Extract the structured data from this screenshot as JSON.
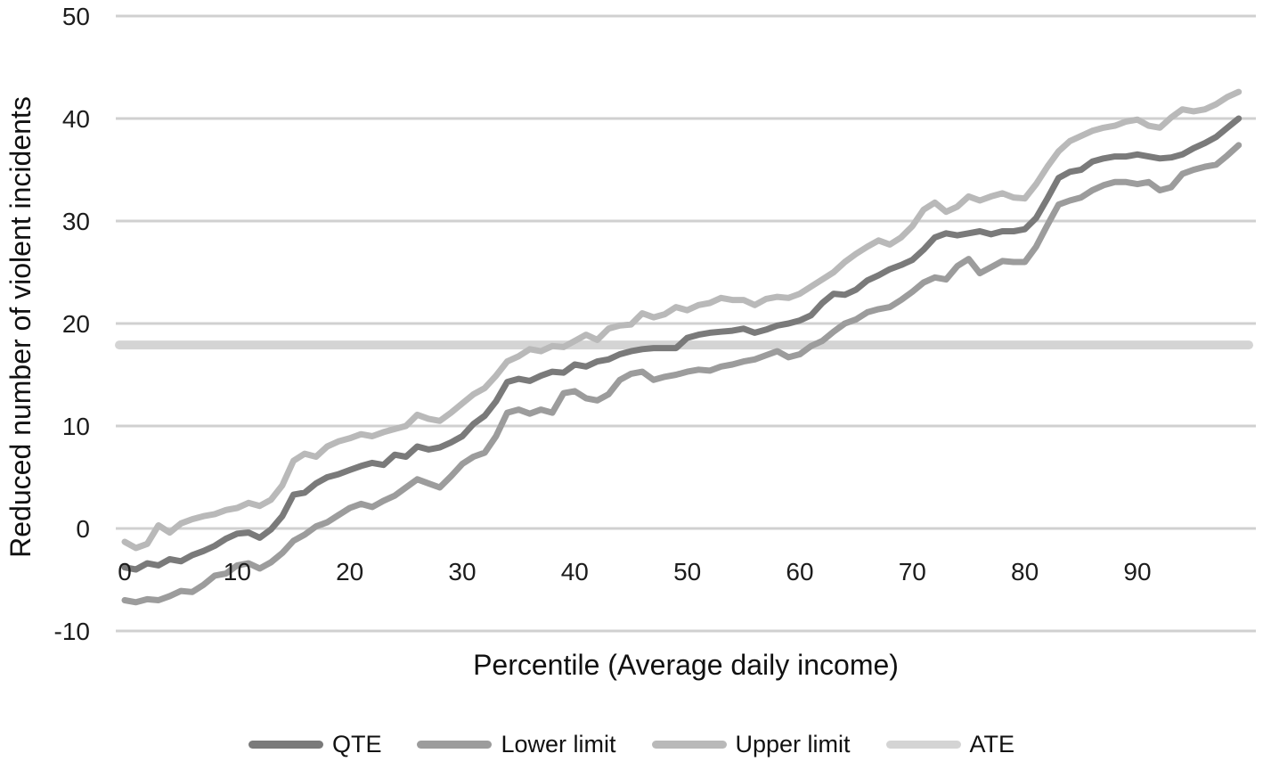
{
  "chart_data": {
    "type": "line",
    "title": "",
    "xlabel": "Percentile (Average daily income)",
    "ylabel": "Reduced number of violent incidents",
    "xlim": [
      0,
      99
    ],
    "ylim": [
      -10,
      50
    ],
    "xticks": [
      0,
      10,
      20,
      30,
      40,
      50,
      60,
      70,
      80,
      90
    ],
    "yticks": [
      -10,
      0,
      10,
      20,
      30,
      40,
      50
    ],
    "grid": "horizontal",
    "legend_position": "bottom",
    "colors": {
      "background": "#ffffff",
      "gridline": "#d0d0d0",
      "text": "#1c1c1c"
    },
    "series": [
      {
        "name": "QTE",
        "color": "#7a7a7a",
        "values": [
          -3.8,
          -4.0,
          -3.4,
          -3.6,
          -3.0,
          -3.2,
          -2.6,
          -2.2,
          -1.7,
          -1.0,
          -0.5,
          -0.4,
          -0.9,
          -0.1,
          1.2,
          3.3,
          3.5,
          4.4,
          5.0,
          5.3,
          5.7,
          6.1,
          6.4,
          6.2,
          7.2,
          7.0,
          8.0,
          7.7,
          7.9,
          8.4,
          9.0,
          10.2,
          11.0,
          12.4,
          14.3,
          14.6,
          14.4,
          14.9,
          15.3,
          15.2,
          16.0,
          15.8,
          16.3,
          16.5,
          17.0,
          17.3,
          17.5,
          17.6,
          17.6,
          17.6,
          18.6,
          18.9,
          19.1,
          19.2,
          19.3,
          19.5,
          19.1,
          19.4,
          19.8,
          20.0,
          20.3,
          20.8,
          22.0,
          22.9,
          22.8,
          23.3,
          24.2,
          24.7,
          25.3,
          25.7,
          26.2,
          27.2,
          28.4,
          28.8,
          28.6,
          28.8,
          29.0,
          28.7,
          29.0,
          29.0,
          29.2,
          30.3,
          32.2,
          34.2,
          34.8,
          35.0,
          35.8,
          36.1,
          36.3,
          36.3,
          36.5,
          36.3,
          36.1,
          36.2,
          36.5,
          37.1,
          37.6,
          38.2,
          39.1,
          40.0
        ]
      },
      {
        "name": "Lower limit",
        "color": "#9c9c9c",
        "values": [
          -7.0,
          -7.2,
          -6.9,
          -7.0,
          -6.6,
          -6.1,
          -6.2,
          -5.5,
          -4.6,
          -4.4,
          -3.6,
          -3.4,
          -3.9,
          -3.3,
          -2.4,
          -1.2,
          -0.6,
          0.2,
          0.6,
          1.3,
          2.0,
          2.4,
          2.1,
          2.7,
          3.2,
          4.0,
          4.8,
          4.4,
          4.0,
          5.1,
          6.3,
          7.0,
          7.4,
          9.0,
          11.3,
          11.6,
          11.2,
          11.6,
          11.3,
          13.2,
          13.4,
          12.7,
          12.5,
          13.1,
          14.5,
          15.1,
          15.3,
          14.5,
          14.8,
          15.0,
          15.3,
          15.5,
          15.4,
          15.8,
          16.0,
          16.3,
          16.5,
          16.9,
          17.3,
          16.7,
          17.0,
          17.8,
          18.3,
          19.2,
          20.0,
          20.4,
          21.1,
          21.4,
          21.6,
          22.3,
          23.1,
          24.0,
          24.5,
          24.3,
          25.6,
          26.3,
          24.9,
          25.5,
          26.1,
          26.0,
          26.0,
          27.5,
          29.6,
          31.6,
          32.0,
          32.3,
          33.0,
          33.5,
          33.8,
          33.8,
          33.6,
          33.8,
          33.0,
          33.3,
          34.6,
          35.0,
          35.3,
          35.5,
          36.4,
          37.4
        ]
      },
      {
        "name": "Upper limit",
        "color": "#b9b9b9",
        "values": [
          -1.3,
          -1.9,
          -1.5,
          0.3,
          -0.4,
          0.5,
          0.9,
          1.2,
          1.4,
          1.8,
          2.0,
          2.5,
          2.2,
          2.8,
          4.2,
          6.6,
          7.3,
          7.0,
          8.0,
          8.5,
          8.8,
          9.2,
          9.0,
          9.4,
          9.7,
          10.0,
          11.1,
          10.7,
          10.5,
          11.3,
          12.2,
          13.1,
          13.7,
          14.9,
          16.3,
          16.8,
          17.5,
          17.3,
          17.8,
          17.7,
          18.3,
          18.9,
          18.4,
          19.5,
          19.8,
          19.9,
          21.0,
          20.6,
          20.9,
          21.6,
          21.3,
          21.8,
          22.0,
          22.5,
          22.3,
          22.3,
          21.8,
          22.4,
          22.6,
          22.5,
          22.9,
          23.6,
          24.3,
          25.0,
          26.0,
          26.8,
          27.5,
          28.1,
          27.7,
          28.4,
          29.5,
          31.1,
          31.8,
          30.9,
          31.4,
          32.4,
          32.0,
          32.4,
          32.7,
          32.3,
          32.2,
          33.6,
          35.3,
          36.8,
          37.8,
          38.3,
          38.8,
          39.1,
          39.3,
          39.7,
          39.9,
          39.3,
          39.1,
          40.1,
          40.9,
          40.7,
          40.9,
          41.4,
          42.1,
          42.6
        ]
      },
      {
        "name": "ATE",
        "color": "#d4d4d4",
        "constant": 17.9
      }
    ]
  }
}
